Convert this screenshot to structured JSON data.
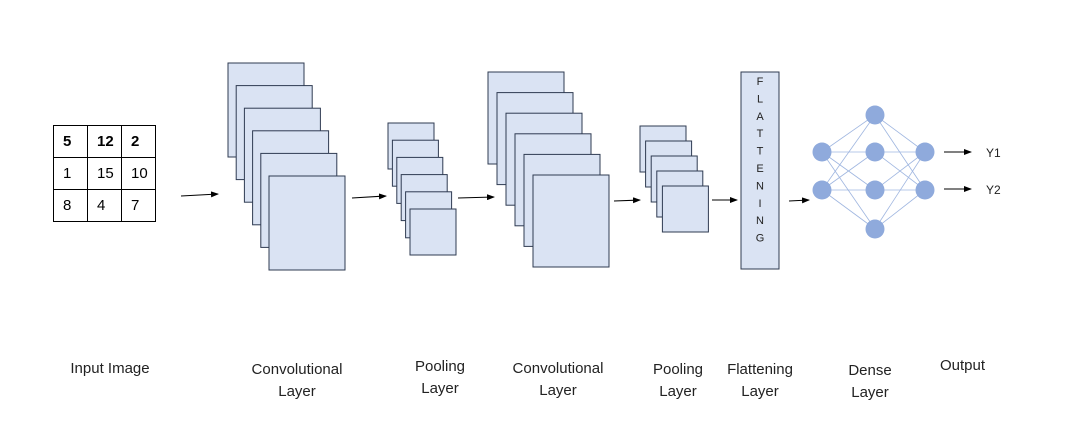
{
  "input_matrix": {
    "rows": [
      [
        "5",
        "12",
        "2"
      ],
      [
        "1",
        "15",
        "10"
      ],
      [
        "8",
        "4",
        "7"
      ]
    ]
  },
  "flatten_box": {
    "letters": [
      "F",
      "L",
      "A",
      "T",
      "T",
      "E",
      "N",
      "I",
      "N",
      "G"
    ]
  },
  "outputs": [
    "Y1",
    "Y2"
  ],
  "captions": {
    "input": [
      "Input Image"
    ],
    "conv1": [
      "Convolutional",
      "Layer"
    ],
    "pool1": [
      "Pooling",
      "Layer"
    ],
    "conv2": [
      "Convolutional",
      "Layer"
    ],
    "pool2": [
      "Pooling",
      "Layer"
    ],
    "flatten": [
      "Flattening",
      "Layer"
    ],
    "dense": [
      "Dense",
      "Layer"
    ],
    "output": [
      "Output"
    ]
  },
  "colors": {
    "feature_map_fill": "#dae3f3",
    "feature_map_stroke": "#2f3b52",
    "neuron_fill": "#8faadc",
    "connection": "#9fb6e0",
    "arrow": "#000000"
  }
}
